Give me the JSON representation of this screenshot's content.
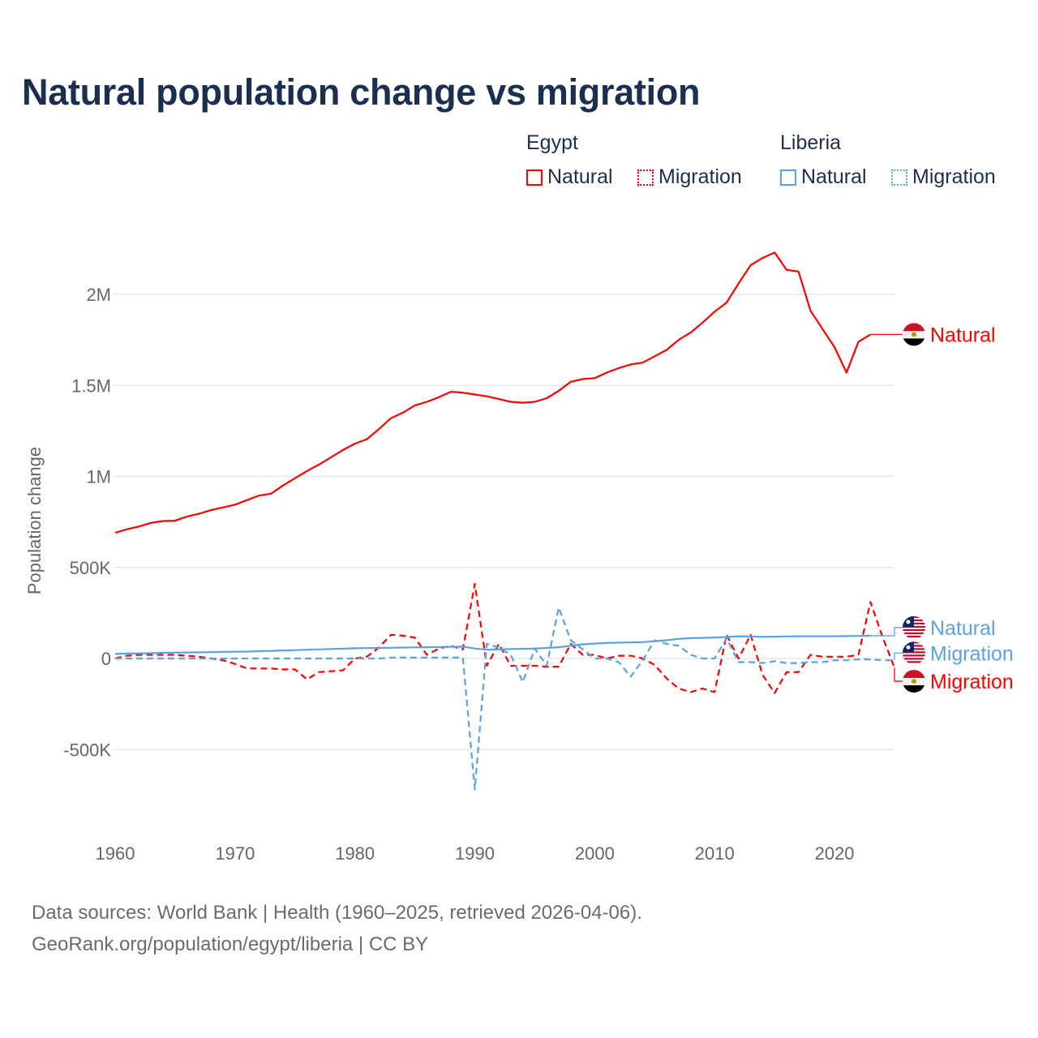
{
  "title": "Natural population change vs migration",
  "legend": {
    "groups": [
      {
        "name": "Egypt",
        "color": "#ff0000",
        "items": [
          {
            "label": "Natural",
            "style": "solid"
          },
          {
            "label": "Migration",
            "style": "dotted"
          }
        ]
      },
      {
        "name": "Liberia",
        "color": "#5aa2e6",
        "items": [
          {
            "label": "Natural",
            "style": "solid"
          },
          {
            "label": "Migration",
            "style": "dotted"
          }
        ]
      }
    ]
  },
  "footer": {
    "line1": "Data sources: World Bank | Health (1960–2025, retrieved 2026-04-06).",
    "line2": "GeoRank.org/population/egypt/liberia | CC BY"
  },
  "chart_data": {
    "type": "line",
    "title": "Natural population change vs migration",
    "xlabel": "",
    "ylabel": "Population change",
    "xlim": [
      1960,
      2025
    ],
    "ylim": [
      -800000,
      2400000
    ],
    "x_ticks": [
      1960,
      1970,
      1980,
      1990,
      2000,
      2010,
      2020
    ],
    "x_tick_labels": [
      "1960",
      "1970",
      "1980",
      "1990",
      "2000",
      "2010",
      "2020"
    ],
    "y_ticks": [
      -500000,
      0,
      500000,
      1000000,
      1500000,
      2000000
    ],
    "y_tick_labels": [
      "-500K",
      "0",
      "500K",
      "1M",
      "1.5M",
      "2M"
    ],
    "grid": true,
    "legend_position": "top-right",
    "start_year": 1960,
    "series": [
      {
        "name": "Egypt Natural",
        "end_label": "Natural",
        "country": "Egypt",
        "color": "#ff0000",
        "dash": "solid",
        "label_value": 1780000,
        "values": [
          690000,
          710000,
          725000,
          745000,
          755000,
          757000,
          780000,
          795000,
          815000,
          830000,
          845000,
          870000,
          895000,
          905000,
          950000,
          990000,
          1030000,
          1065000,
          1105000,
          1145000,
          1180000,
          1205000,
          1260000,
          1320000,
          1350000,
          1390000,
          1410000,
          1435000,
          1465000,
          1460000,
          1450000,
          1440000,
          1425000,
          1410000,
          1405000,
          1410000,
          1430000,
          1470000,
          1520000,
          1535000,
          1540000,
          1570000,
          1595000,
          1615000,
          1625000,
          1660000,
          1695000,
          1750000,
          1790000,
          1845000,
          1905000,
          1955000,
          2060000,
          2160000,
          2200000,
          2230000,
          2135000,
          2125000,
          1910000,
          1810000,
          1710000,
          1570000,
          1740000,
          1780000
        ]
      },
      {
        "name": "Egypt Migration",
        "end_label": "Migration",
        "country": "Egypt",
        "color": "#ff0000",
        "dash": "dashed",
        "label_value": -125000,
        "values": [
          0,
          15000,
          20000,
          20000,
          20000,
          20000,
          15000,
          10000,
          0,
          -10000,
          -30000,
          -55000,
          -55000,
          -55000,
          -60000,
          -60000,
          -115000,
          -75000,
          -70000,
          -65000,
          0,
          10000,
          60000,
          130000,
          125000,
          115000,
          20000,
          55000,
          70000,
          50000,
          410000,
          -40000,
          80000,
          -40000,
          -40000,
          -40000,
          -45000,
          -45000,
          80000,
          20000,
          20000,
          0,
          15000,
          15000,
          0,
          -35000,
          -110000,
          -165000,
          -185000,
          -165000,
          -185000,
          130000,
          0,
          130000,
          -90000,
          -190000,
          -75000,
          -75000,
          20000,
          10000,
          10000,
          10000,
          20000,
          310000,
          120000,
          -50000
        ]
      },
      {
        "name": "Liberia Natural",
        "end_label": "Natural",
        "country": "Liberia",
        "color": "#5aa2e6",
        "dash": "solid",
        "label_value": 170000,
        "values": [
          25000,
          27000,
          28000,
          30000,
          31000,
          32000,
          33000,
          34000,
          35000,
          36000,
          37000,
          38000,
          40000,
          42000,
          44000,
          46000,
          48000,
          50000,
          52000,
          54000,
          56000,
          57000,
          58000,
          59000,
          60000,
          61000,
          62000,
          63000,
          64000,
          65000,
          55000,
          48000,
          50000,
          52000,
          53000,
          55000,
          58000,
          62000,
          70000,
          78000,
          82000,
          85000,
          87000,
          88000,
          90000,
          95000,
          100000,
          108000,
          112000,
          113000,
          115000,
          118000,
          122000,
          121000,
          119000,
          120000,
          121000,
          122000,
          122000,
          122000,
          122000,
          123000,
          124000,
          125000
        ]
      },
      {
        "name": "Liberia Migration",
        "end_label": "Migration",
        "country": "Liberia",
        "color": "#5aa2e6",
        "dash": "dashed",
        "label_value": 30000,
        "values": [
          0,
          0,
          0,
          0,
          0,
          0,
          0,
          0,
          0,
          0,
          0,
          0,
          0,
          0,
          0,
          0,
          0,
          0,
          0,
          0,
          0,
          0,
          0,
          5000,
          5000,
          5000,
          5000,
          5000,
          5000,
          5000,
          -720000,
          80000,
          60000,
          20000,
          -130000,
          55000,
          -40000,
          280000,
          100000,
          50000,
          0,
          0,
          -20000,
          -100000,
          -10000,
          100000,
          80000,
          70000,
          20000,
          0,
          0,
          110000,
          -20000,
          -20000,
          -25000,
          -15000,
          -25000,
          -25000,
          -20000,
          -20000,
          -10000,
          -10000,
          -5000,
          -5000,
          -10000,
          -10000
        ]
      }
    ]
  }
}
